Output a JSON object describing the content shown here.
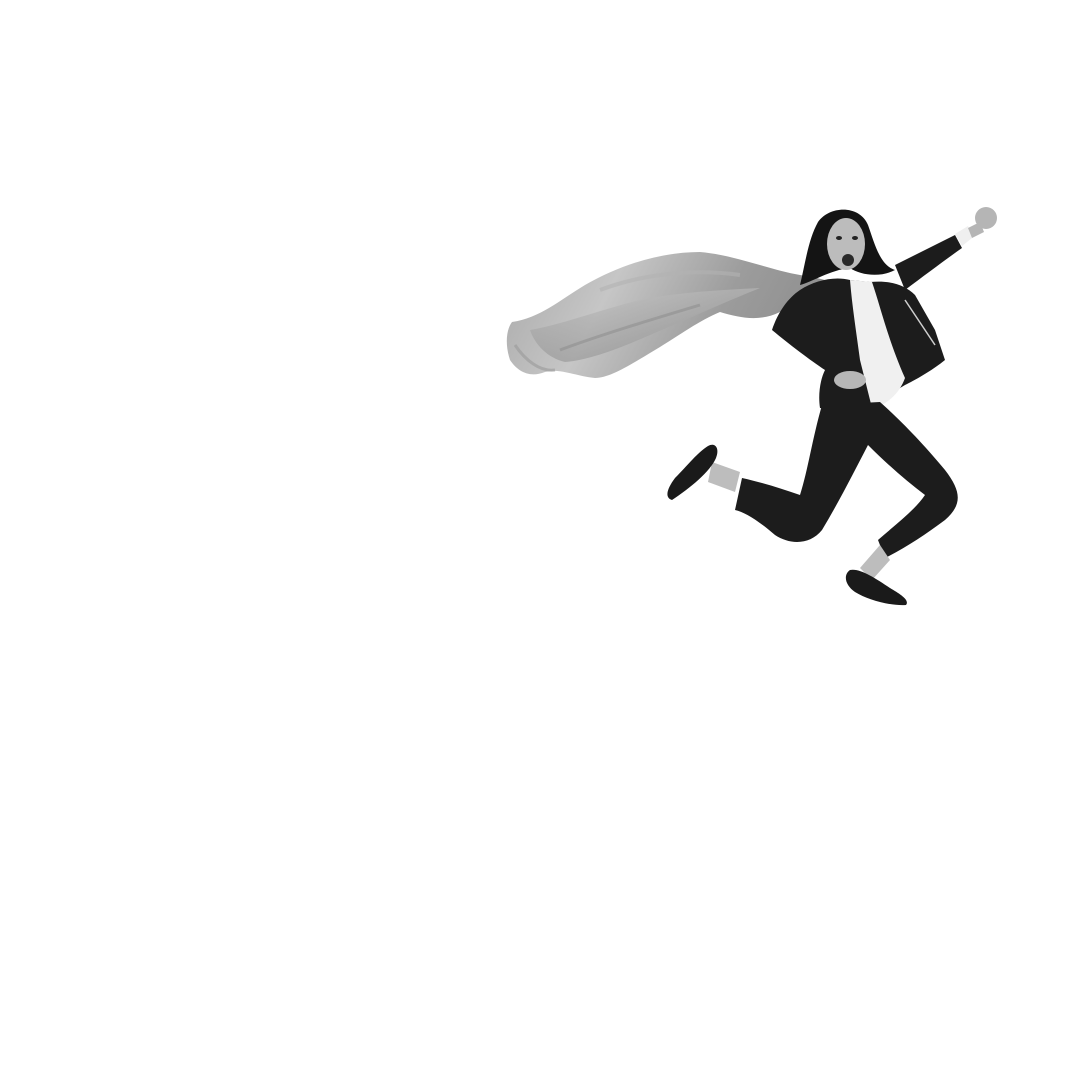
{
  "scene": {
    "background_color": "#ffffff",
    "tone": "grayscale",
    "subject": "woman-in-suit-jumping-with-cape",
    "colors": {
      "suit": "#1c1c1c",
      "blouse": "#f1f1f1",
      "skin": "#b9b9b9",
      "hair": "#141414",
      "cape_light": "#c8c8c8",
      "cape_mid": "#a3a3a3",
      "cape_dark": "#8a8a8a"
    }
  }
}
